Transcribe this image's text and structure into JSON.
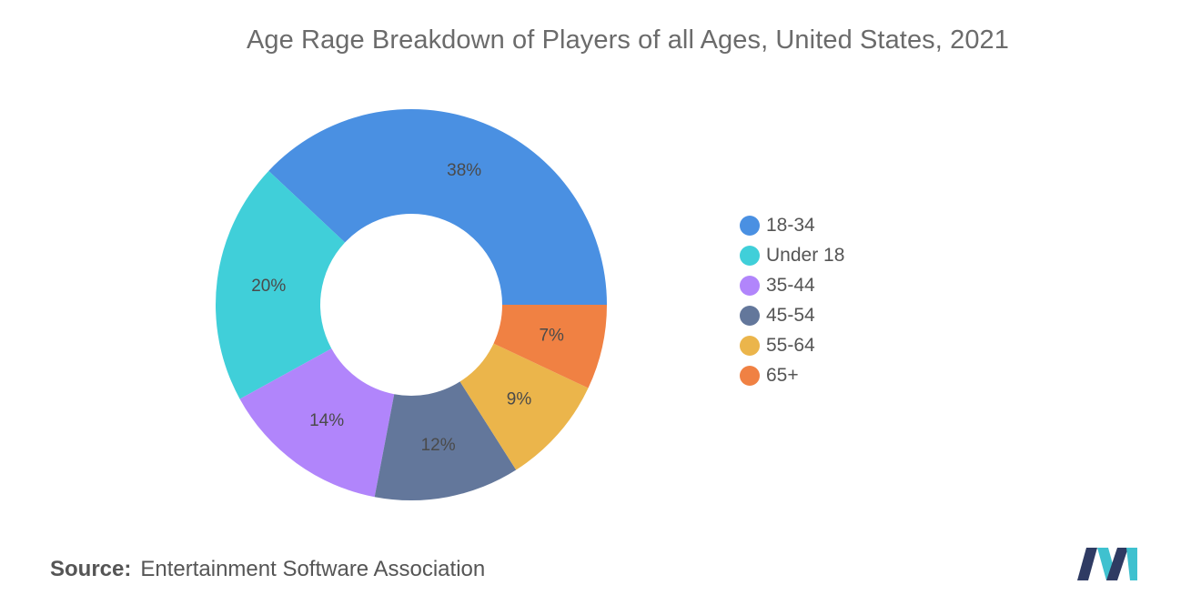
{
  "title": "Age Rage Breakdown of Players of all Ages, United States, 2021",
  "chart_data": {
    "type": "pie",
    "style": "donut",
    "title": "Age Rage Breakdown of Players of all Ages, United States, 2021",
    "categories": [
      "18-34",
      "Under 18",
      "35-44",
      "45-54",
      "55-64",
      "65+"
    ],
    "values": [
      38,
      20,
      14,
      12,
      9,
      7
    ],
    "labels": [
      "38%",
      "20%",
      "14%",
      "12%",
      "9%",
      "7%"
    ],
    "colors": [
      "#4a90e2",
      "#40cfd9",
      "#b185fb",
      "#63779b",
      "#ebb54b",
      "#f08143"
    ],
    "legend_position": "right"
  },
  "legend": [
    {
      "label": "18-34",
      "color": "#4a90e2"
    },
    {
      "label": "Under 18",
      "color": "#40cfd9"
    },
    {
      "label": "35-44",
      "color": "#b185fb"
    },
    {
      "label": "45-54",
      "color": "#63779b"
    },
    {
      "label": "55-64",
      "color": "#ebb54b"
    },
    {
      "label": "65+",
      "color": "#f08143"
    }
  ],
  "source": {
    "key": "Source:",
    "text": "Entertainment Software Association"
  },
  "logo": {
    "icon": "mordor-intelligence-logo-icon",
    "colors": [
      "#2f3b63",
      "#3fc1cf"
    ]
  }
}
